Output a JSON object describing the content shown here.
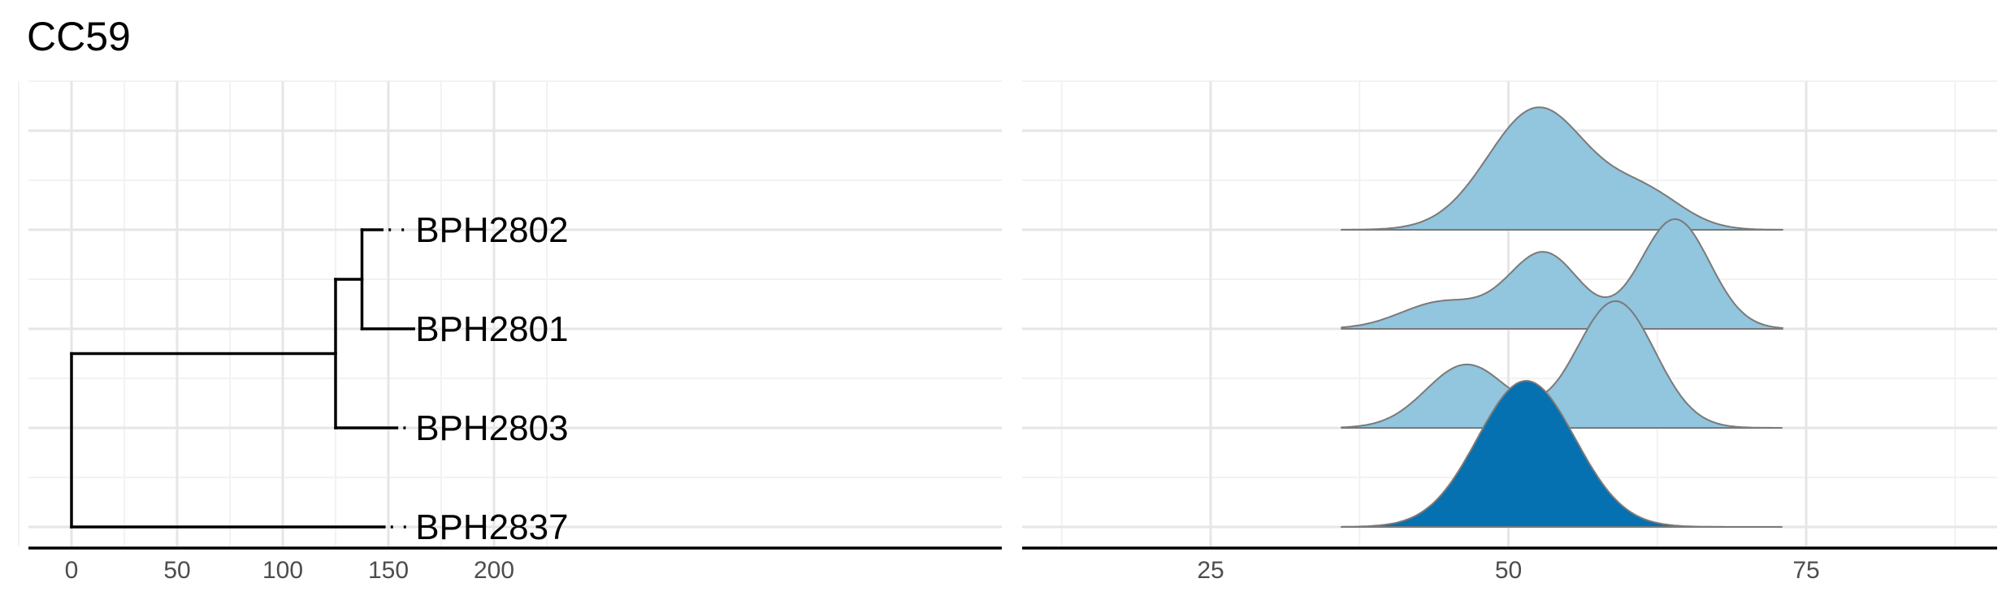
{
  "title": "CC59",
  "colors": {
    "grid_major": "#e6e6e6",
    "grid_minor": "#f2f2f2",
    "axis": "#000000",
    "tree": "#000000",
    "density_light": "#92c5de",
    "density_highlight": "#0571b0",
    "density_outline": "#7a7a7a"
  },
  "chart_data": [
    {
      "type": "tree",
      "panel": "phylogeny",
      "x_ticks": [
        0,
        50,
        100,
        150,
        200
      ],
      "xlim": [
        -10,
        220
      ],
      "grid": true,
      "tips": [
        {
          "label": "BPH2802",
          "branch_end": 147
        },
        {
          "label": "BPH2801",
          "branch_end": 162
        },
        {
          "label": "BPH2803",
          "branch_end": 154
        },
        {
          "label": "BPH2837",
          "branch_end": 148
        }
      ],
      "label_x": 162,
      "nodes": [
        {
          "name": "root",
          "x": 0
        },
        {
          "name": "n1",
          "x": 125
        },
        {
          "name": "n2",
          "x": 137.5
        }
      ]
    },
    {
      "type": "ridgeline",
      "panel": "density",
      "x_ticks": [
        25,
        50,
        75
      ],
      "xlim": [
        10,
        90
      ],
      "grid": true,
      "x_range": [
        36,
        73
      ],
      "series": [
        {
          "tip": "BPH2802",
          "highlight": false,
          "peaks": [
            {
              "mu": 52.5,
              "sd": 4.2,
              "w": 1.0
            },
            {
              "mu": 61.5,
              "sd": 3.2,
              "w": 0.28
            }
          ]
        },
        {
          "tip": "BPH2801",
          "highlight": false,
          "peaks": [
            {
              "mu": 44.5,
              "sd": 3.5,
              "w": 0.22
            },
            {
              "mu": 53,
              "sd": 3.0,
              "w": 0.62
            },
            {
              "mu": 64,
              "sd": 2.9,
              "w": 0.9
            }
          ]
        },
        {
          "tip": "BPH2803",
          "highlight": false,
          "peaks": [
            {
              "mu": 46.5,
              "sd": 3.4,
              "w": 0.52
            },
            {
              "mu": 59,
              "sd": 3.3,
              "w": 1.04
            }
          ]
        },
        {
          "tip": "BPH2837",
          "highlight": true,
          "peaks": [
            {
              "mu": 51.5,
              "sd": 4.1,
              "w": 1.2
            }
          ]
        }
      ]
    }
  ]
}
